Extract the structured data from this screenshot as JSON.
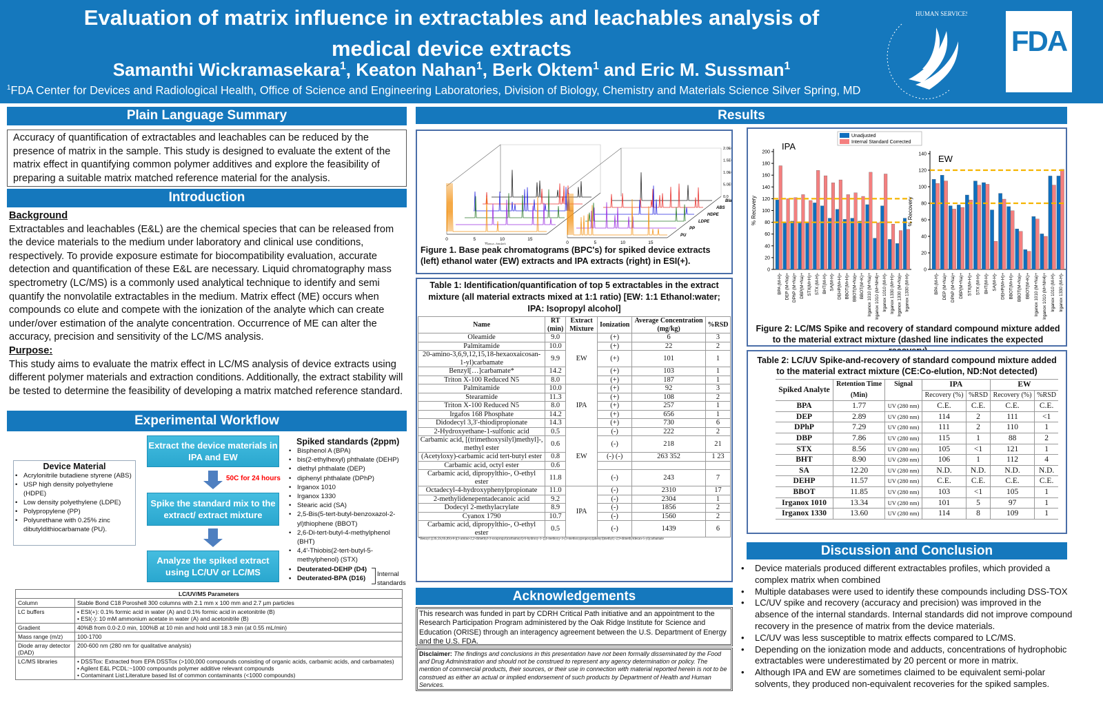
{
  "header": {
    "title_line1": "Evaluation of matrix influence in extractables and leachables analysis of",
    "title_line2": "medical device extracts",
    "authors": [
      {
        "name": "Samanthi Wickramasekara",
        "sup": "1"
      },
      {
        "name": ", Keaton Nahan",
        "sup": "1"
      },
      {
        "name": ", Berk Oktem",
        "sup": "1"
      },
      {
        "name": " and Eric M. Sussman",
        "sup": "1"
      }
    ],
    "affiliation_sup": "1",
    "affiliation": "FDA Center for Devices and Radiological Health, Office of Science and Engineering Laboratories, Division of Biology, Chemistry and Materials Science Silver Spring, MD",
    "seal_text": "DEPARTMENT OF HEALTH & HUMAN SERVICES-USA",
    "logo_text": "FDA"
  },
  "summary": {
    "title": "Plain Language Summary",
    "text": "Accuracy of quantification of extractables and leachables can be reduced by the presence of matrix in the sample. This study is designed to evaluate the extent of the matrix effect in quantifying common polymer additives and explore the feasibility of preparing a suitable matrix matched reference material for the analysis."
  },
  "introduction": {
    "title": "Introduction",
    "background_heading": "Background",
    "background_text": "Extractables and leachables (E&L) are the chemical species that can be released from the device materials to the medium under laboratory and clinical use conditions, respectively. To provide exposure estimate for biocompatibility evaluation, accurate detection and quantification of these E&L are necessary. Liquid chromatography mass spectrometry (LC/MS) is a commonly used analytical technique to identify and semi quantify the nonvolatile extractables in the medium. Matrix effect (ME) occurs when compounds co elute and compete with the ionization of the analyte which can create under/over estimation of the analyte concentration. Occurrence of ME can alter the accuracy, precision and sensitivity of the LC/MS analysis.",
    "purpose_heading": "Purpose:",
    "purpose_text": "This study aims to evaluate the matrix effect in LC/MS analysis of device extracts using different polymer materials and extraction conditions. Additionally, the extract stability will be tested to determine the feasibility of developing a matrix matched reference standard."
  },
  "workflow": {
    "title": "Experimental Workflow",
    "device_material_title": "Device Material",
    "device_materials": [
      "Acrylonitrile butadiene styrene (ABS)",
      "USP high density polyethylene (HDPE)",
      "Low density polyethylene (LDPE)",
      "Polypropylene (PP)",
      "Polyurethane with 0.25% zinc dibutyldithiocarbamate (PU)."
    ],
    "steps": [
      "Extract the device materials in IPA and EW",
      "Spike the standard mix to the extract/ extract mixture",
      "Analyze the spiked extract using LC/UV or LC/MS"
    ],
    "condition": "50C for 24 hours",
    "condition_color": "#ff0000",
    "spiked_title": "Spiked standards (2ppm)",
    "spiked": [
      "Bisphenol A (BPA)",
      "bis(2-ethylhexyl) phthalate (DEHP)",
      "diethyl phthalate (DEP)",
      "diphenyl phthalate (DPhP)",
      "Irganox 1010",
      "Irganox 1330",
      "Stearic acid (SA)",
      "2,5-Bis(5-tert-butyl-benzoxazol-2-yl)thiophene (BBOT)",
      "2,6-Di-tert-butyl-4-methylphenol (BHT)",
      "4,4'-Thiobis(2-tert-butyl-5-methylphenol) (STX)"
    ],
    "internal": [
      "Deuterated-DEHP (D4)",
      "Deuterated-BPA (D16)"
    ],
    "internal_label": "Internal standards"
  },
  "params": {
    "title": "LC/UV/MS Parameters",
    "rows": [
      {
        "label": "Column",
        "value": [
          "Stable Bond C18 Poroshell 300 columns with 2.1 mm x 100 mm and 2.7 µm particles"
        ]
      },
      {
        "label": "LC buffers",
        "value": [
          "ESI(+): 0.1% formic acid in water (A) and 0.1% formic acid in acetonitrile (B)",
          "ESI(-): 10 mM ammonium acetate in water (A) and acetonitrile (B)"
        ]
      },
      {
        "label": "Gradient",
        "value": [
          "40%B from 0.0-2.0 min, 100%B at 10 min and hold until 18.3 min (at 0.55 mL/min)"
        ]
      },
      {
        "label": "Mass range (m/z)",
        "value": [
          "100-1700"
        ]
      },
      {
        "label": "Diode array detector (DAD)",
        "value": [
          "200-600 nm (280 nm for qualitative analysis)"
        ]
      },
      {
        "label": "LC/MS libraries",
        "value": [
          "DSSTox: Extracted from EPA DSSTox (>100,000 compounds consisting of organic acids, carbamic acids, and carbamates)",
          "Agilent  E&L PCDL:~1000 compounds polymer additive relevant compounds",
          "Contaminant List:Literature based list of common contaminants (<1000 compounds)"
        ]
      }
    ]
  },
  "results": {
    "title": "Results",
    "fig1": {
      "caption": "Figure 1. Base peak chromatograms (BPC's) for spiked device extracts (left) ethanol water (EW) extracts and IPA extracts (right) in ESI(+).",
      "xlabel": "Time (min)",
      "xticks": [
        "0",
        "5",
        "10",
        "15"
      ],
      "zlabel": "Intensity",
      "zticks": [
        "0.0",
        "5.0E5",
        "1.0E6",
        "1.5E6",
        "2.0E6"
      ],
      "samples": [
        "Blank",
        "ABS",
        "HDPE",
        "LDPE",
        "PP",
        "PU"
      ],
      "sample_colors": [
        "#222222",
        "#e8332f",
        "#2a2ae0",
        "#2d7a2d",
        "#9b30e0",
        "#f39418"
      ]
    },
    "table1": {
      "caption": "Table 1: Identification/quantification of top 5 extractables in the extract mixture (all material extracts mixed at 1:1 ratio) [EW: 1:1 Ethanol:water; IPA: Isopropyl alcohol]",
      "headers": [
        "Name",
        "RT (min)",
        "Extract Mixture",
        "Ionization",
        "Average Concentration (mg/kg)",
        "%RSD"
      ],
      "groups": [
        {
          "mixture": "EW",
          "rows": [
            [
              "Oleamide",
              "9.0",
              "(+)",
              "6",
              "3"
            ],
            [
              "Palmitamide",
              "10.0",
              "(+)",
              "22",
              "2"
            ],
            [
              "20-amino-3,6,9,12,15,18-hexaoxaicosan-1-yl)carbamate",
              "9.9",
              "(+)",
              "101",
              "1"
            ],
            [
              "Benzyl[…]carbamate*",
              "14.2",
              "(+)",
              "103",
              "1"
            ],
            [
              "Triton X-100 Reduced N5",
              "8.0",
              "(+)",
              "187",
              "1"
            ]
          ]
        },
        {
          "mixture": "IPA",
          "rows": [
            [
              "Palmitamide",
              "10.0",
              "(+)",
              "92",
              "3"
            ],
            [
              "Stearamide",
              "11.3",
              "(+)",
              "108",
              "2"
            ],
            [
              "Triton X-100 Reduced N5",
              "8.0",
              "(+)",
              "257",
              "1"
            ],
            [
              "Irgafos 168 Phosphate",
              "14.2",
              "(+)",
              "656",
              "1"
            ],
            [
              "Didodecyl 3,3'-thiodipropionate",
              "14.3",
              "(+)",
              "730",
              "6"
            ]
          ]
        },
        {
          "mixture": "EW",
          "rows": [
            [
              "2-Hydroxyethane-1-sulfonic acid",
              "0.5",
              "(-)",
              "222",
              "2"
            ],
            [
              "Carbamic acid, [(trimethoxysilyl)methyl]-, methyl ester",
              "0.6",
              "(-)",
              "218",
              "21"
            ],
            [
              "(Acetyloxy)-carbamic acid tert-butyl ester",
              "0.8",
              "(-) (-)",
              "263 352",
              "1 23"
            ],
            [
              "Carbamic acid, octyl ester",
              "0.6",
              "",
              "",
              ""
            ],
            [
              "Carbamic acid, dipropylthio-, O-ethyl ester",
              "11.8",
              "(-)",
              "243",
              "7"
            ]
          ]
        },
        {
          "mixture": "IPA",
          "rows": [
            [
              "Octadecyl-4-hydroxyphenylpropionate",
              "11.0",
              "(-)",
              "2310",
              "17"
            ],
            [
              "2-methylidenepentadecanoic acid",
              "9.2",
              "(-)",
              "2304",
              "1"
            ],
            [
              "Dodecyl 2-methylacrylate",
              "8.9",
              "(-)",
              "1856",
              "2"
            ],
            [
              "Cyanox 1790",
              "10.7",
              "(-)",
              "1560",
              "2"
            ],
            [
              "Carbamic acid, dipropylthio-, O-ethyl ester",
              "0.5",
              "(-)",
              "1439",
              "6"
            ]
          ]
        }
      ],
      "footnote": "*Benzyl [(3S,5S,6S,8S)-8-[(3-amino-2,2-dimethyl-3-oxopropyl)carbamoyl]-6-hydroxy-3-{[4-methoxy-3-(3-methoxypropoxy)phenyl]methyl}-2,9-dimethyldecan-5-yl]carbamate"
    },
    "fig2": {
      "caption": "Figure 2: LC/MS Spike and recovery of standard compound mixture added to the material extract mixture (dashed line indicates the expected recovery)",
      "legend": [
        "Unadjusted",
        "Internal Standard Corrected"
      ]
    },
    "table2": {
      "caption": "Table 2: LC/UV Spike-and-recovery of standard compound mixture added to the material extract mixture (CE:Co-elution, ND:Not detected)",
      "h_analyte": "Spiked Analyte",
      "h_rt": "Retention Time",
      "h_rt_unit": "(Min)",
      "h_signal": "Signal",
      "h_ipa": "IPA",
      "h_ew": "EW",
      "h_recovery": "Recovery (%)",
      "h_rsd": "%RSD",
      "rows": [
        [
          "BPA",
          "1.77",
          "UV (280 nm)",
          "C.E.",
          "C.E.",
          "C.E.",
          "C.E."
        ],
        [
          "DEP",
          "2.89",
          "UV (280 nm)",
          "114",
          "2",
          "111",
          "<1"
        ],
        [
          "DPhP",
          "7.29",
          "UV (280 nm)",
          "111",
          "2",
          "110",
          "1"
        ],
        [
          "DBP",
          "7.86",
          "UV (280 nm)",
          "115",
          "1",
          "88",
          "2"
        ],
        [
          "STX",
          "8.56",
          "UV (280 nm)",
          "105",
          "<1",
          "121",
          "1"
        ],
        [
          "BHT",
          "8.90",
          "UV (280 nm)",
          "106",
          "1",
          "112",
          "4"
        ],
        [
          "SA",
          "12.20",
          "UV (280 nm)",
          "N.D.",
          "N.D.",
          "N.D.",
          "N.D."
        ],
        [
          "DEHP",
          "11.57",
          "UV (280 nm)",
          "C.E.",
          "C.E.",
          "C.E.",
          "C.E."
        ],
        [
          "BBOT",
          "11.85",
          "UV (280 nm)",
          "103",
          "<1",
          "105",
          "1"
        ],
        [
          "Irganox 1010",
          "13.34",
          "UV (280 nm)",
          "101",
          "5",
          "97",
          "1"
        ],
        [
          "Irganox 1330",
          "13.60",
          "UV (280 nm)",
          "114",
          "8",
          "109",
          "1"
        ]
      ]
    }
  },
  "acknowledgements": {
    "title": "Acknowledgements",
    "text": "This research was funded in part by CDRH Critical Path initiative and an appointment to the Research Participation Program administered by the Oak Ridge Institute for Science and Education (ORISE) through an interagency agreement between the U.S. Department of Energy and the U.S. FDA.",
    "disclaimer_label": "Disclaimer:",
    "disclaimer": "The findings and conclusions in this presentation have not been formally disseminated by the Food and Drug Administration and should not be construed to represent any agency determination or policy. The mention of commercial products, their sources, or their use in connection with material reported herein is not to be construed as either an actual or implied endorsement of such products by Department of Health and Human Services."
  },
  "discussion": {
    "title": "Discussion and Conclusion",
    "bullets": [
      "Device materials produced different extractables profiles, which provided a complex matrix when combined",
      "Multiple databases were used to identify these compounds including DSS-TOX",
      "LC/UV spike and recovery (accuracy and precision) was improved in the absence of the internal standards. Internal standards did not improve compound recovery in the presence of matrix from the device materials.",
      "LC/UV was less susceptible to matrix effects compared to LC/MS.",
      "Depending on the ionization mode and adducts, concentrations of hydrophobic extractables were underestimated by 20 percent or more in matrix.",
      "Although IPA and EW are sometimes claimed to be equivalent semi-polar solvents, they produced non-equivalent recoveries for the spiked samples."
    ]
  },
  "colors": {
    "brand_blue": "#1578bd",
    "unadjusted": "#0f6fbf",
    "corrected": "#f47f7f",
    "expected_line": "#f5b400",
    "workflow_box": "#35b3db"
  },
  "chart_data": [
    {
      "type": "bar",
      "title": "IPA",
      "ylabel": "% Recovery",
      "ylim": [
        0,
        200
      ],
      "yticks": [
        "0",
        "20",
        "40",
        "60",
        "80",
        "100",
        "120",
        "140",
        "160",
        "180",
        "200"
      ],
      "reference_lines": [
        80,
        120
      ],
      "legend": "top-right",
      "categories": [
        "BPA (M-H)-",
        "DEP (M+Na)+",
        "DPhP (M+Na)+",
        "DBP(M+Na)+",
        "STX(M+H)+",
        "STX (M-H)-",
        "BHT(M-H)-",
        "SA(M-H)-",
        "DEHP(M+H)+",
        "BBOT(M+H)+",
        "BBOT(M+Na)+",
        "BBOT(M+K)+",
        "Irganox 1010 (M+Na)+",
        "Irganox 1010 (M+NH4)+",
        "Irganox 1010 (M-H)-",
        "Irganox 1330 (M+H)+",
        "Irganox 1330 (M+Na)+",
        "Irganox 1330 (M-H)-"
      ],
      "series": [
        {
          "name": "Unadjusted",
          "values": [
            118,
            79,
            82,
            81,
            79,
            113,
            108,
            87,
            102,
            85,
            87,
            82,
            110,
            53,
            108,
            51,
            44,
            87
          ]
        },
        {
          "name": "Internal Standard Corrected",
          "values": [
            176,
            120,
            122,
            127,
            117,
            168,
            159,
            147,
            152,
            127,
            130,
            124,
            165,
            79,
            162,
            77,
            66,
            68
          ]
        }
      ]
    },
    {
      "type": "bar",
      "title": "EW",
      "ylabel": "% Recovery",
      "ylim": [
        0,
        140
      ],
      "yticks": [
        "0",
        "20",
        "40",
        "60",
        "80",
        "100",
        "120",
        "140"
      ],
      "reference_lines": [
        80,
        120
      ],
      "categories": [
        "BPA (M-H)-",
        "DEP (M+Na)+",
        "DPhP (M+Na)+",
        "DBP(M+Na)+",
        "STX(M+H)+",
        "STX (M-H)-",
        "BHT(M-H)-",
        "SA(M-H)-",
        "DEHP(M+H)+",
        "BBOT(M+H)+",
        "BBOT(M+Na)+",
        "BBOT(M+K)+",
        "Irganox 1010 (M+Na)+",
        "Irganox 1010 (M+NH4)+",
        "Irganox 1010 (M-H)-",
        "Irganox 1330 (M-H)-"
      ],
      "series": [
        {
          "name": "Unadjusted",
          "values": [
            109,
            114,
            77,
            78,
            90,
            107,
            105,
            72,
            92,
            76,
            49,
            24,
            64,
            43,
            113,
            113
          ]
        },
        {
          "name": "Internal Standard Corrected",
          "values": [
            104,
            107,
            73,
            75,
            84,
            102,
            103,
            34,
            85,
            71,
            46,
            22,
            61,
            40,
            102,
            121
          ]
        }
      ]
    }
  ]
}
